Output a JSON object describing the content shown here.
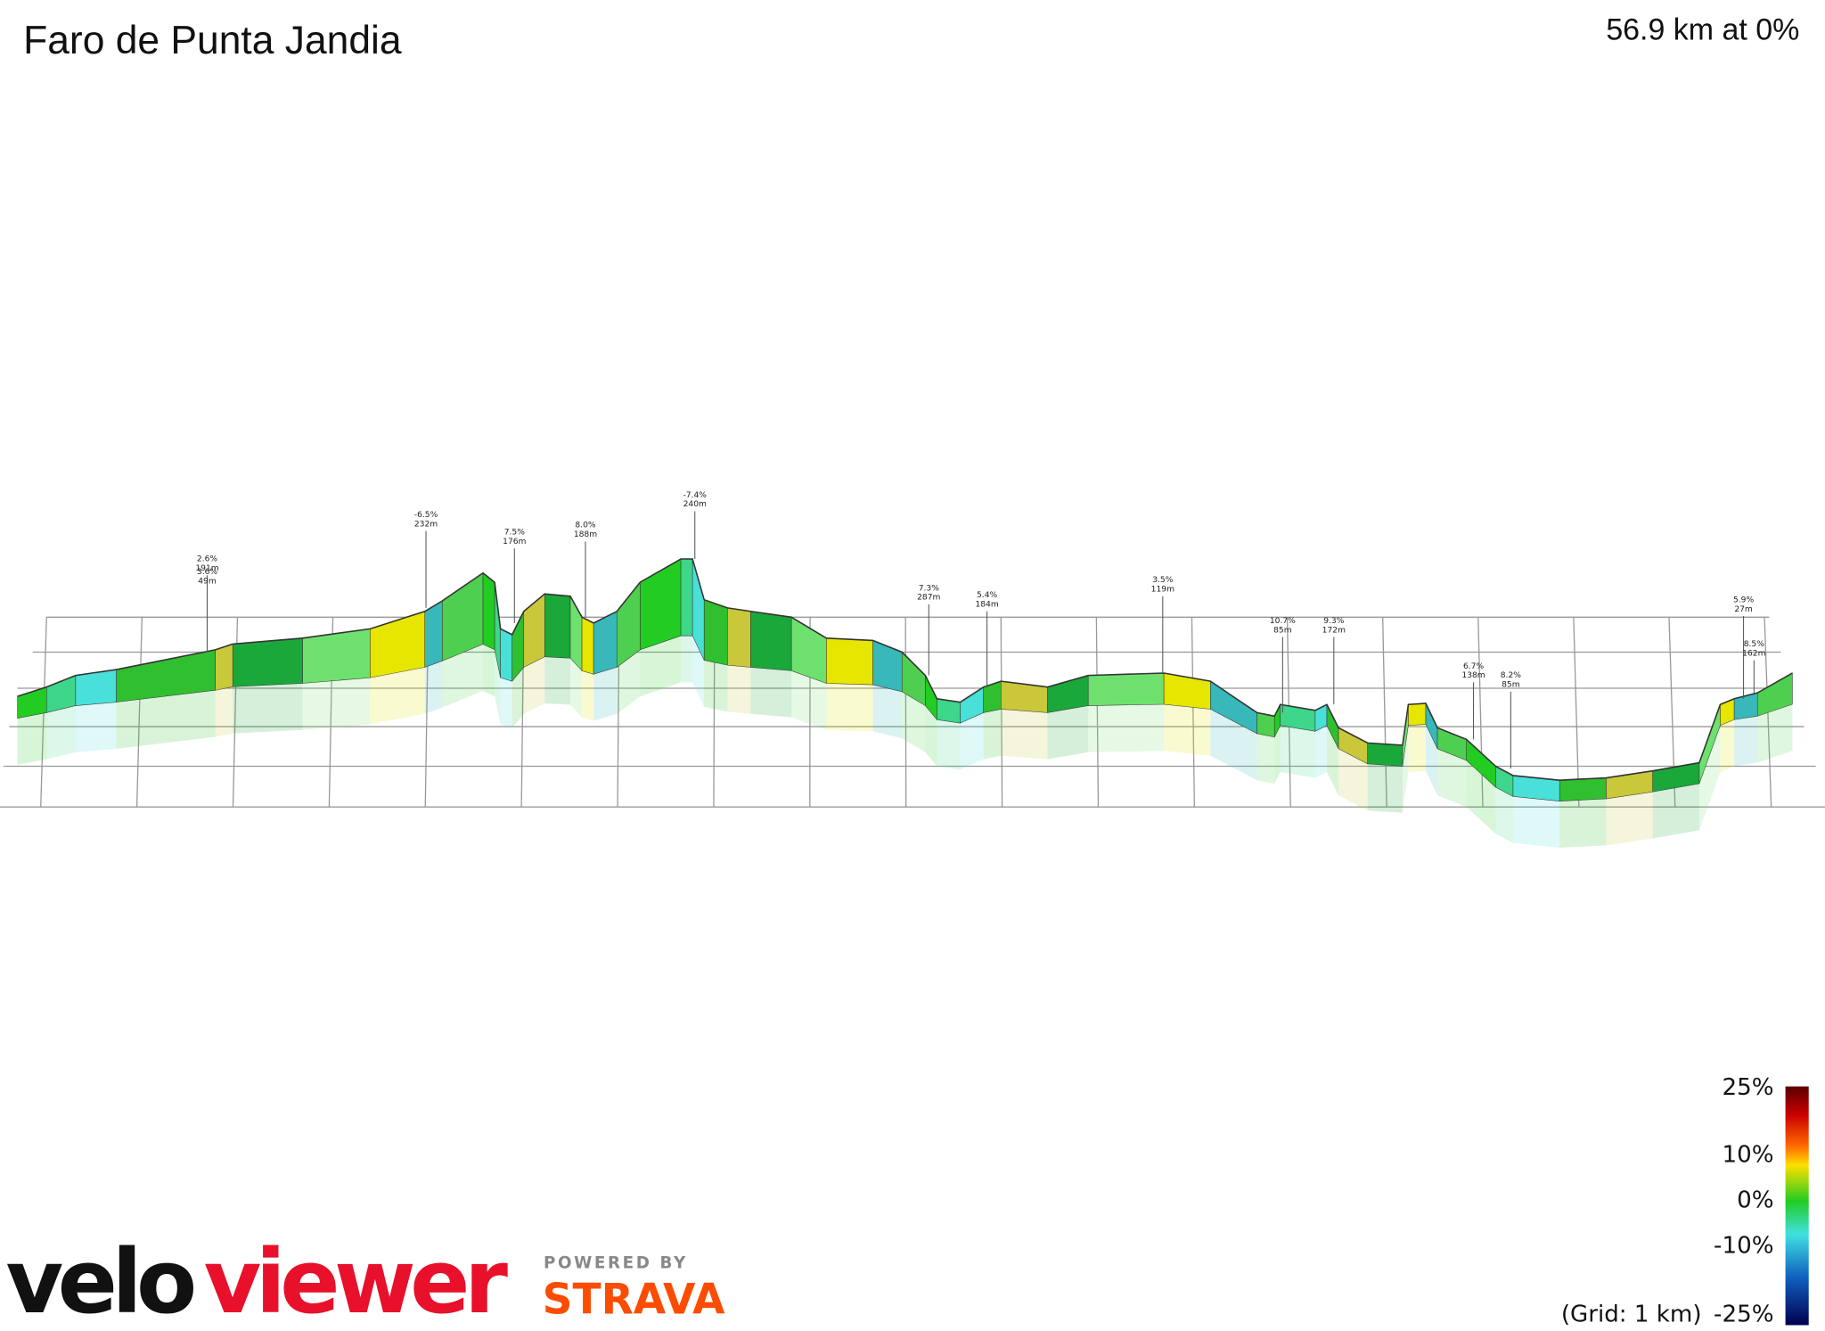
{
  "header": {
    "title": "Faro de Punta Jandia",
    "summary": "56.9 km at 0%"
  },
  "annotations": [
    {
      "grade": "2.6%",
      "elevation": "191m"
    },
    {
      "grade": "3.6%",
      "elevation": "49m"
    },
    {
      "grade": "-6.5%",
      "elevation": "232m"
    },
    {
      "grade": "7.5%",
      "elevation": "176m"
    },
    {
      "grade": "8.0%",
      "elevation": "188m"
    },
    {
      "grade": "-7.4%",
      "elevation": "240m"
    },
    {
      "grade": "7.3%",
      "elevation": "287m"
    },
    {
      "grade": "5.4%",
      "elevation": "184m"
    },
    {
      "grade": "3.5%",
      "elevation": "119m"
    },
    {
      "grade": "10.7%",
      "elevation": "85m"
    },
    {
      "grade": "9.3%",
      "elevation": "172m"
    },
    {
      "grade": "6.7%",
      "elevation": "138m"
    },
    {
      "grade": "8.2%",
      "elevation": "85m"
    },
    {
      "grade": "5.9%",
      "elevation": "27m"
    },
    {
      "grade": "8.5%",
      "elevation": "162m"
    }
  ],
  "legend": {
    "labels": [
      "25%",
      "10%",
      "0%",
      "-10%",
      "-25%"
    ],
    "grid_note": "(Grid: 1 km)"
  },
  "branding": {
    "logo_dark": "velo",
    "logo_red": "viewer",
    "powered_by": "POWERED BY",
    "partner": "STRAVA"
  }
}
